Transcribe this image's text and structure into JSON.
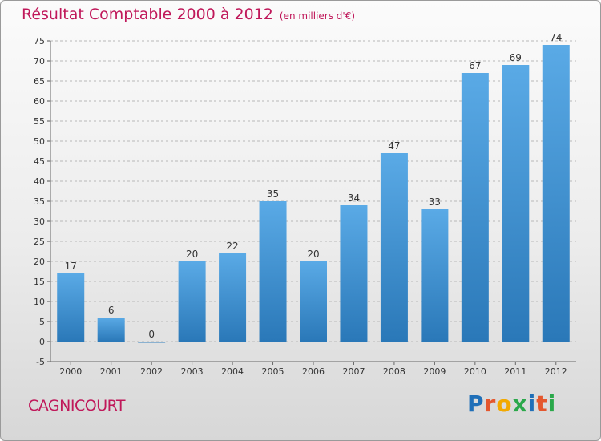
{
  "chart_data": {
    "type": "bar",
    "title": "Résultat Comptable 2000 à 2012",
    "subtitle": "(en milliers d'€)",
    "categories": [
      "2000",
      "2001",
      "2002",
      "2003",
      "2004",
      "2005",
      "2006",
      "2007",
      "2008",
      "2009",
      "2010",
      "2011",
      "2012"
    ],
    "values": [
      17,
      6,
      0,
      20,
      22,
      35,
      20,
      34,
      47,
      33,
      67,
      69,
      74
    ],
    "ylim": [
      -5,
      75
    ],
    "yticks": [
      -5,
      0,
      5,
      10,
      15,
      20,
      25,
      30,
      35,
      40,
      45,
      50,
      55,
      60,
      65,
      70,
      75
    ],
    "xlabel": "",
    "ylabel": "",
    "grid": true,
    "bar_color_top": "#5aaae6",
    "bar_color_bottom": "#2a78b8"
  },
  "footer": {
    "town": "CAGNICOURT",
    "logo_letters": [
      "P",
      "r",
      "o",
      "x",
      "i",
      "t",
      "i"
    ],
    "logo_colors": [
      "#1f6fb8",
      "#e4572e",
      "#f2a900",
      "#2aa84a",
      "#1f6fb8",
      "#e4572e",
      "#2aa84a"
    ]
  },
  "colors": {
    "title": "#c0185a",
    "grid": "#b8b8b8",
    "text": "#333333"
  }
}
